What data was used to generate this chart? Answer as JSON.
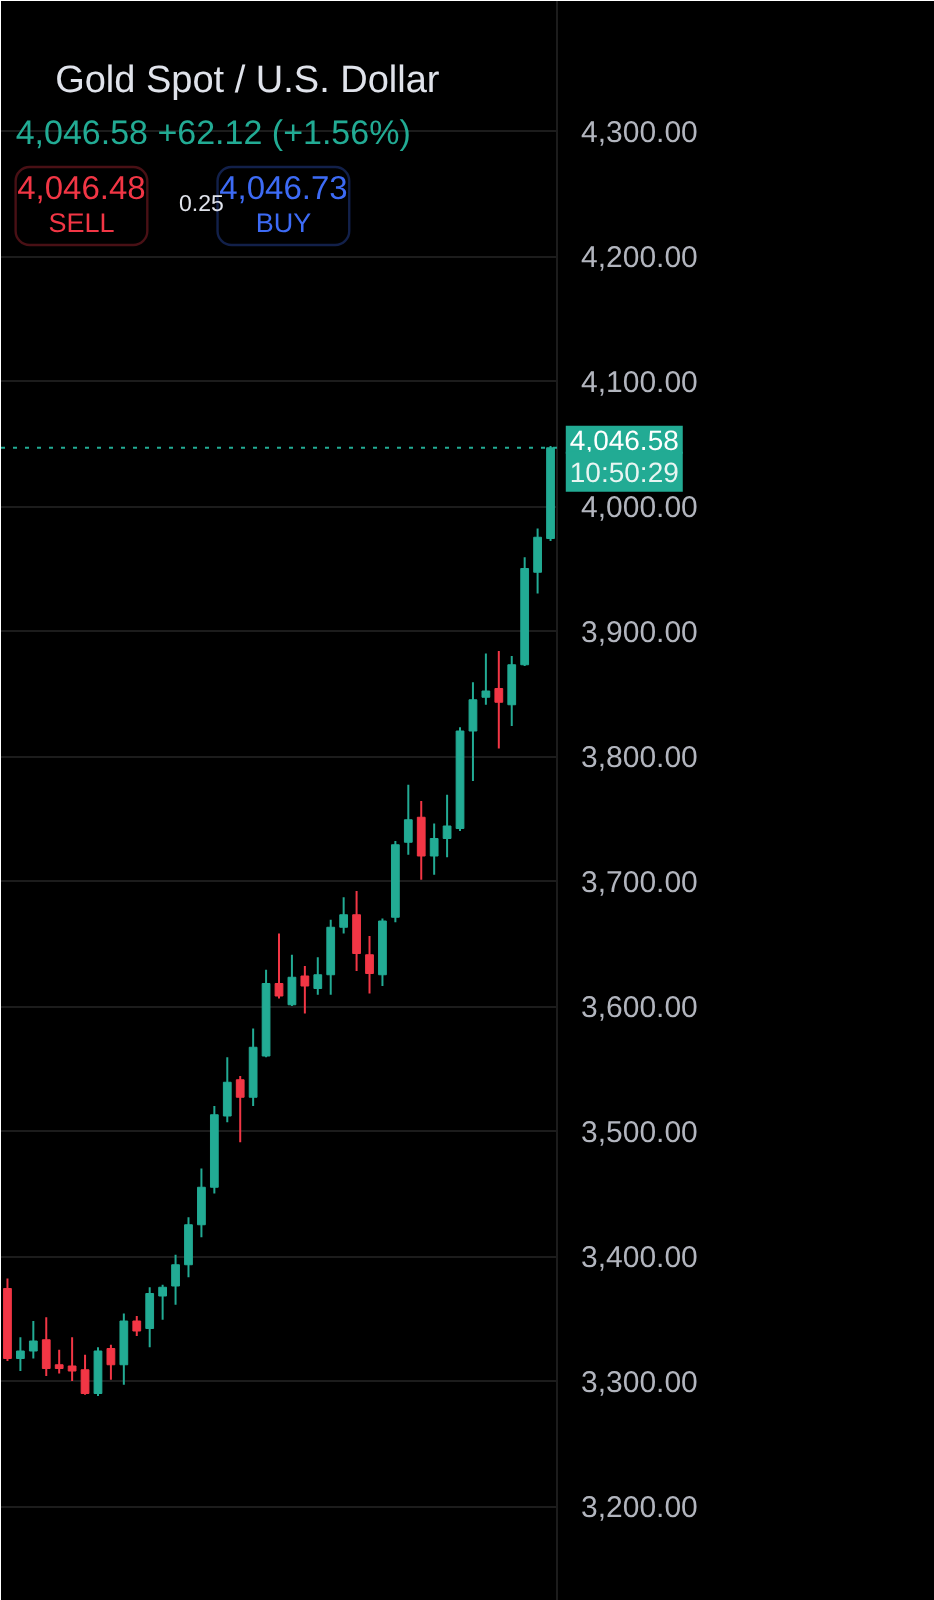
{
  "chart_data": {
    "type": "candlestick",
    "title": "Gold Spot / U.S. Dollar",
    "subtitle": "4,046.58 +62.12 (+1.56%)",
    "categories": [
      null,
      null,
      null,
      null,
      null,
      null,
      null,
      null,
      null,
      null,
      null,
      null,
      null,
      null,
      null,
      null,
      null,
      null,
      null,
      null,
      null,
      null,
      null,
      null,
      null,
      null,
      null,
      null,
      null,
      null,
      null,
      null,
      null,
      null,
      null,
      null,
      null,
      null,
      null,
      null,
      null,
      null,
      null
    ],
    "ohlc": [
      [
        3374,
        3382,
        3316,
        3318
      ],
      [
        3318,
        3335,
        3308,
        3324
      ],
      [
        3324,
        3348,
        3318,
        3332
      ],
      [
        3333,
        3351,
        3304,
        3310
      ],
      [
        3313,
        3325,
        3306,
        3310
      ],
      [
        3312,
        3335,
        3300,
        3308
      ],
      [
        3309,
        3321,
        3289,
        3290
      ],
      [
        3290,
        3327,
        3288,
        3324
      ],
      [
        3326,
        3329,
        3301,
        3313
      ],
      [
        3313,
        3354,
        3297,
        3348
      ],
      [
        3348,
        3352,
        3336,
        3340
      ],
      [
        3342,
        3375,
        3327,
        3370
      ],
      [
        3368,
        3377,
        3349,
        3375
      ],
      [
        3376,
        3401,
        3361,
        3393
      ],
      [
        3393,
        3431,
        3383,
        3425
      ],
      [
        3425,
        3470,
        3415,
        3455
      ],
      [
        3455,
        3520,
        3450,
        3513
      ],
      [
        3512,
        3559,
        3507,
        3539
      ],
      [
        3541,
        3544,
        3491,
        3527
      ],
      [
        3527,
        3582,
        3520,
        3567
      ],
      [
        3560,
        3629,
        3559,
        3618
      ],
      [
        3618,
        3658,
        3606,
        3608
      ],
      [
        3601,
        3641,
        3600,
        3623
      ],
      [
        3624,
        3632,
        3594,
        3616
      ],
      [
        3614,
        3639,
        3609,
        3625
      ],
      [
        3625,
        3669,
        3609,
        3663
      ],
      [
        3663,
        3687,
        3658,
        3673
      ],
      [
        3673,
        3692,
        3628,
        3642
      ],
      [
        3641,
        3656,
        3610,
        3626
      ],
      [
        3625,
        3670,
        3616,
        3668
      ],
      [
        3671,
        3732,
        3667,
        3729
      ],
      [
        3731,
        3777,
        3721,
        3749
      ],
      [
        3751,
        3764,
        3701,
        3720
      ],
      [
        3720,
        3746,
        3705,
        3734
      ],
      [
        3734,
        3769,
        3719,
        3744
      ],
      [
        3742,
        3823,
        3740,
        3820
      ],
      [
        3820,
        3859,
        3780,
        3845
      ],
      [
        3847,
        3882,
        3841,
        3852
      ],
      [
        3854,
        3884,
        3806,
        3843
      ],
      [
        3841,
        3880,
        3824,
        3873
      ],
      [
        3873,
        3959,
        3872,
        3950
      ],
      [
        3947,
        3982,
        3930,
        3975
      ],
      [
        3974,
        4048,
        3972,
        4046.58
      ]
    ],
    "colors": [
      "#f23645",
      "#22ab94",
      "#22ab94",
      "#f23645",
      "#f23645",
      "#f23645",
      "#f23645",
      "#22ab94",
      "#f23645",
      "#22ab94",
      "#f23645",
      "#22ab94",
      "#22ab94",
      "#22ab94",
      "#22ab94",
      "#22ab94",
      "#22ab94",
      "#22ab94",
      "#f23645",
      "#22ab94",
      "#22ab94",
      "#f23645",
      "#22ab94",
      "#f23645",
      "#22ab94",
      "#22ab94",
      "#22ab94",
      "#f23645",
      "#f23645",
      "#22ab94",
      "#22ab94",
      "#22ab94",
      "#f23645",
      "#22ab94",
      "#22ab94",
      "#22ab94",
      "#22ab94",
      "#22ab94",
      "#f23645",
      "#22ab94",
      "#22ab94",
      "#22ab94",
      "#22ab94"
    ],
    "ylim": [
      3124,
      4404
    ],
    "yticks": [
      {
        "value": 3200,
        "label": "3,200.00"
      },
      {
        "value": 3300,
        "label": "3,300.00"
      },
      {
        "value": 3400,
        "label": "3,400.00"
      },
      {
        "value": 3500,
        "label": "3,500.00"
      },
      {
        "value": 3600,
        "label": "3,600.00"
      },
      {
        "value": 3700,
        "label": "3,700.00"
      },
      {
        "value": 3800,
        "label": "3,800.00"
      },
      {
        "value": 3900,
        "label": "3,900.00"
      },
      {
        "value": 4000,
        "label": "4,000.00"
      },
      {
        "value": 4100,
        "label": "4,100.00"
      },
      {
        "value": 4200,
        "label": "4,200.00"
      },
      {
        "value": 4300,
        "label": "4,300.00"
      }
    ],
    "grid": "y",
    "ref_lines": [
      {
        "axis": "y",
        "value": 4046.58,
        "label": "4,046.58",
        "color": "#22ab94",
        "line_style": "dotted"
      }
    ],
    "annotations": [
      "4,046.48",
      "SELL",
      "0.25",
      "4,046.73",
      "BUY",
      "10:50:29"
    ]
  }
}
